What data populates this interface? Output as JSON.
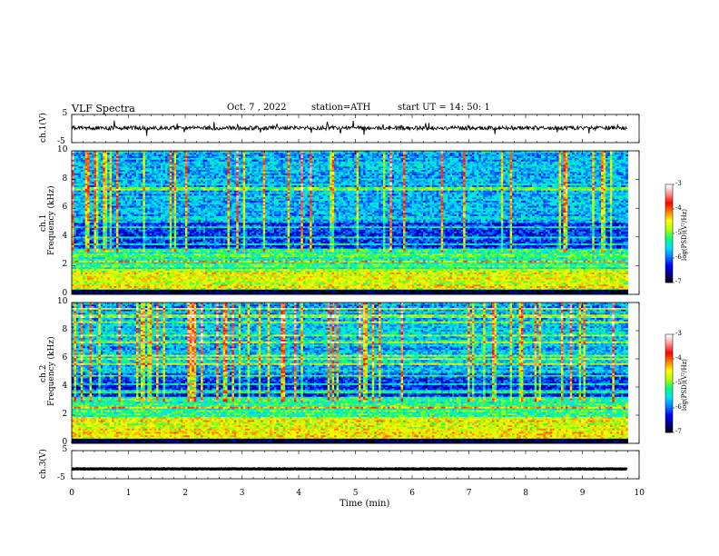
{
  "header": {
    "title": "VLF  Spectra",
    "date": "Oct. 7  , 2022",
    "station": "station=ATH",
    "start_ut": "start  UT  =   14: 50: 1"
  },
  "chart_data": [
    {
      "type": "line",
      "panel": "ch.1(V)",
      "ylabel": "ch.1(V)",
      "y_ticks": [
        "5",
        "-5"
      ],
      "ylim": [
        -5,
        5
      ],
      "x_range_min": [
        0,
        9.8
      ],
      "trace_level": 0.2,
      "color": "#000000"
    },
    {
      "type": "heatmap",
      "panel": "ch.1 spectrogram",
      "ylabel_lines": [
        "ch.1",
        "Frequency  (kHz)"
      ],
      "y_ticks": [
        "0",
        "2",
        "4",
        "6",
        "8",
        "10"
      ],
      "ylim": [
        0,
        10
      ],
      "x_range_min": [
        0,
        9.8
      ],
      "colorbar": {
        "label": "log(PSD)(V²/Hz)",
        "ticks": [
          "-3",
          "-4",
          "-5",
          "-6",
          "-7"
        ],
        "range": [
          -7,
          -3
        ]
      }
    },
    {
      "type": "heatmap",
      "panel": "ch.2 spectrogram",
      "ylabel_lines": [
        "ch.2",
        "Frequency  (kHz)"
      ],
      "y_ticks": [
        "0",
        "2",
        "4",
        "6",
        "8",
        "10"
      ],
      "ylim": [
        0,
        10
      ],
      "x_range_min": [
        0,
        9.8
      ],
      "colorbar": {
        "label": "log(PSD)(V²/Hz)",
        "ticks": [
          "-3",
          "-4",
          "-5",
          "-6",
          "-7"
        ],
        "range": [
          -7,
          -3
        ]
      }
    },
    {
      "type": "line",
      "panel": "ch.3(V)",
      "ylabel": "ch.3(V)",
      "y_ticks": [
        "5",
        "-5"
      ],
      "ylim": [
        -5,
        5
      ],
      "x_range_min": [
        0,
        9.8
      ],
      "trace_level": -1.5,
      "color": "#000000"
    }
  ],
  "x_axis": {
    "label": "Time  (min)",
    "ticks": [
      "0",
      "1",
      "2",
      "3",
      "4",
      "5",
      "6",
      "7",
      "8",
      "9",
      "10"
    ],
    "xlim": [
      0,
      10
    ]
  },
  "colormap": [
    "#000000",
    "#00007f",
    "#0000ff",
    "#0080ff",
    "#00e0ff",
    "#00ff80",
    "#b0ff00",
    "#ffff00",
    "#ff8000",
    "#ff0000",
    "#ff9090",
    "#ffffff"
  ]
}
